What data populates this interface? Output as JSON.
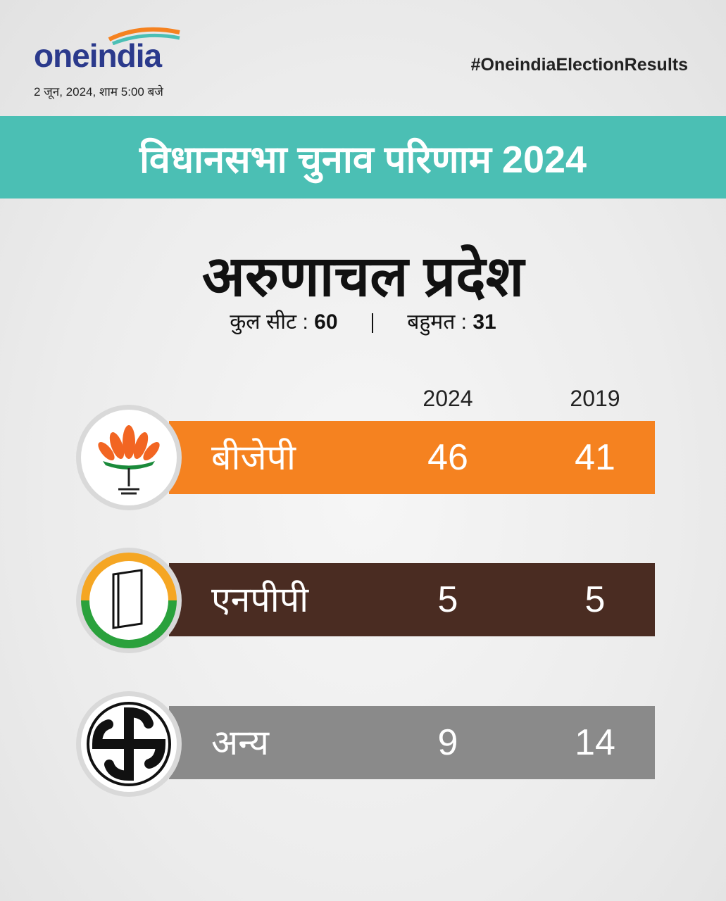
{
  "header": {
    "logo": [
      "one",
      "india"
    ],
    "date": "2 जून, 2024, शाम 5:00 बजे",
    "hashtag": "#OneindiaElectionResults"
  },
  "banner": "विधानसभा चुनाव परिणाम 2024",
  "state": "अरुणाचल प्रदेश",
  "seats": {
    "total_label": "कुल सीट :",
    "total": 60,
    "majority_label": "बहुमत :",
    "majority": 31
  },
  "table": {
    "columns": [
      "2024",
      "2019"
    ],
    "rows": [
      {
        "party": "बीजेपी",
        "values": [
          46,
          41
        ]
      },
      {
        "party": "एनपीपी",
        "values": [
          5,
          5
        ]
      },
      {
        "party": "अन्य",
        "values": [
          9,
          14
        ]
      }
    ]
  }
}
